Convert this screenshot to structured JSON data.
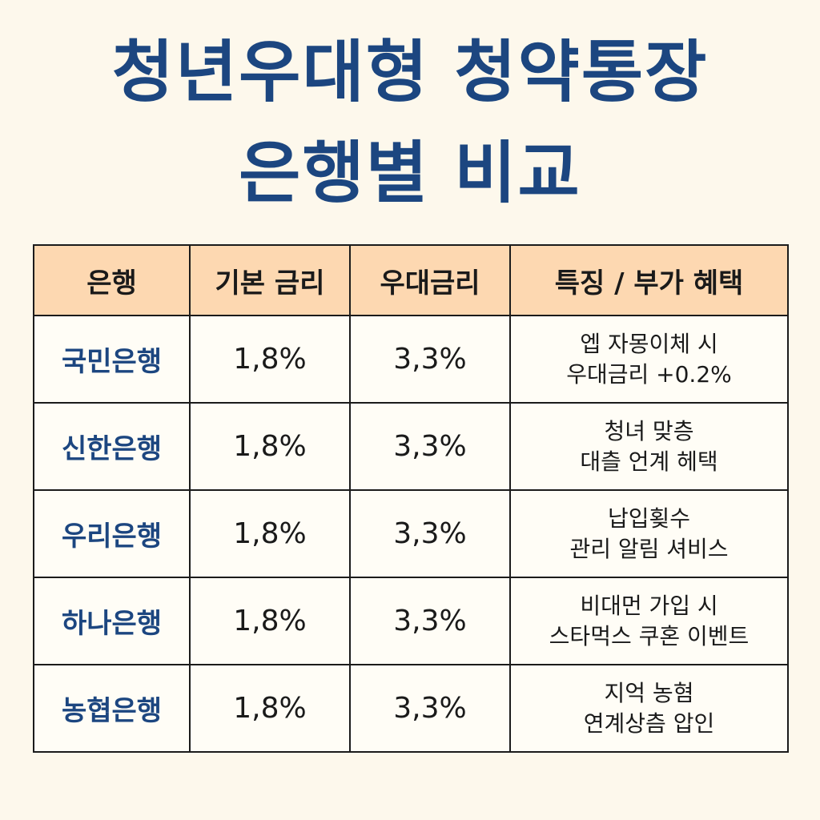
{
  "title": {
    "line1": "청년우대형 청약통장",
    "line2": "은행별 비교"
  },
  "table": {
    "headers": [
      "은행",
      "기본 금리",
      "우대금리",
      "특징 / 부가 혜택"
    ],
    "rows": [
      {
        "bank": "국민은행",
        "base": "1,8%",
        "preferred": "3,3%",
        "feature": [
          "엡 자몽이체 시",
          "우대금리 +0.2%"
        ]
      },
      {
        "bank": "신한은행",
        "base": "1,8%",
        "preferred": "3,3%",
        "feature": [
          "청녀 맞층",
          "대츨 언계 헤택"
        ]
      },
      {
        "bank": "우리은행",
        "base": "1,8%",
        "preferred": "3,3%",
        "feature": [
          "납입횢수",
          "관리 알림 셔비스"
        ]
      },
      {
        "bank": "하나은행",
        "base": "1,8%",
        "preferred": "3,3%",
        "feature": [
          "비대먼 가입 시",
          "스타먹스 쿠혼 이벤트"
        ]
      },
      {
        "bank": "농협은행",
        "base": "1,8%",
        "preferred": "3,3%",
        "feature": [
          "지억 농혐",
          "연계상츰 압인"
        ]
      }
    ]
  },
  "colors": {
    "title": "#1c4680",
    "header_bg": "#fdd8b1",
    "background": "#fdf8ec",
    "bank_text": "#1c4680"
  }
}
